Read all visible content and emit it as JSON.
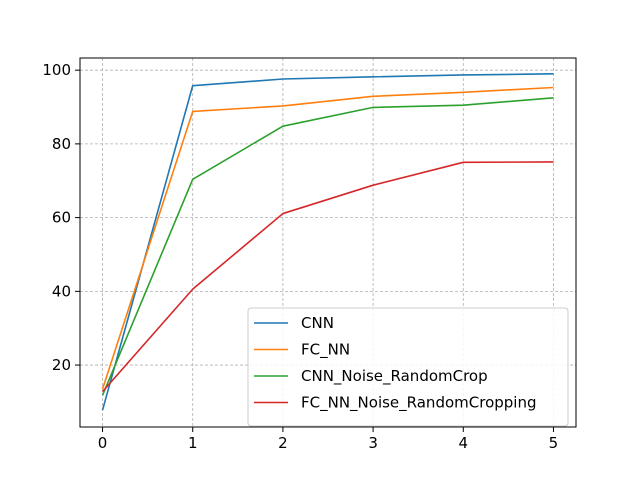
{
  "chart_data": {
    "type": "line",
    "x": [
      0,
      1,
      2,
      3,
      4,
      5
    ],
    "series": [
      {
        "name": "CNN",
        "color": "#1f77b4",
        "values": [
          7.8,
          95.8,
          97.6,
          98.2,
          98.7,
          99.0
        ]
      },
      {
        "name": "FC_NN",
        "color": "#ff7f0e",
        "values": [
          13.5,
          88.8,
          90.3,
          92.9,
          94.0,
          95.3
        ]
      },
      {
        "name": "CNN_Noise_RandomCrop",
        "color": "#2ca02c",
        "values": [
          11.8,
          70.4,
          84.8,
          89.9,
          90.5,
          92.5
        ]
      },
      {
        "name": "FC_NN_Noise_RandomCropping",
        "color": "#d62728",
        "values": [
          12.8,
          40.6,
          61.1,
          68.8,
          75.0,
          75.1
        ]
      }
    ],
    "xticks": [
      0,
      1,
      2,
      3,
      4,
      5
    ],
    "yticks": [
      20,
      40,
      60,
      80,
      100
    ],
    "xlim": [
      -0.25,
      5.25
    ],
    "ylim": [
      3.2,
      103.3
    ],
    "grid": true,
    "grid_style": "dashed",
    "legend_position": "lower-right",
    "title": "",
    "xlabel": "",
    "ylabel": ""
  }
}
